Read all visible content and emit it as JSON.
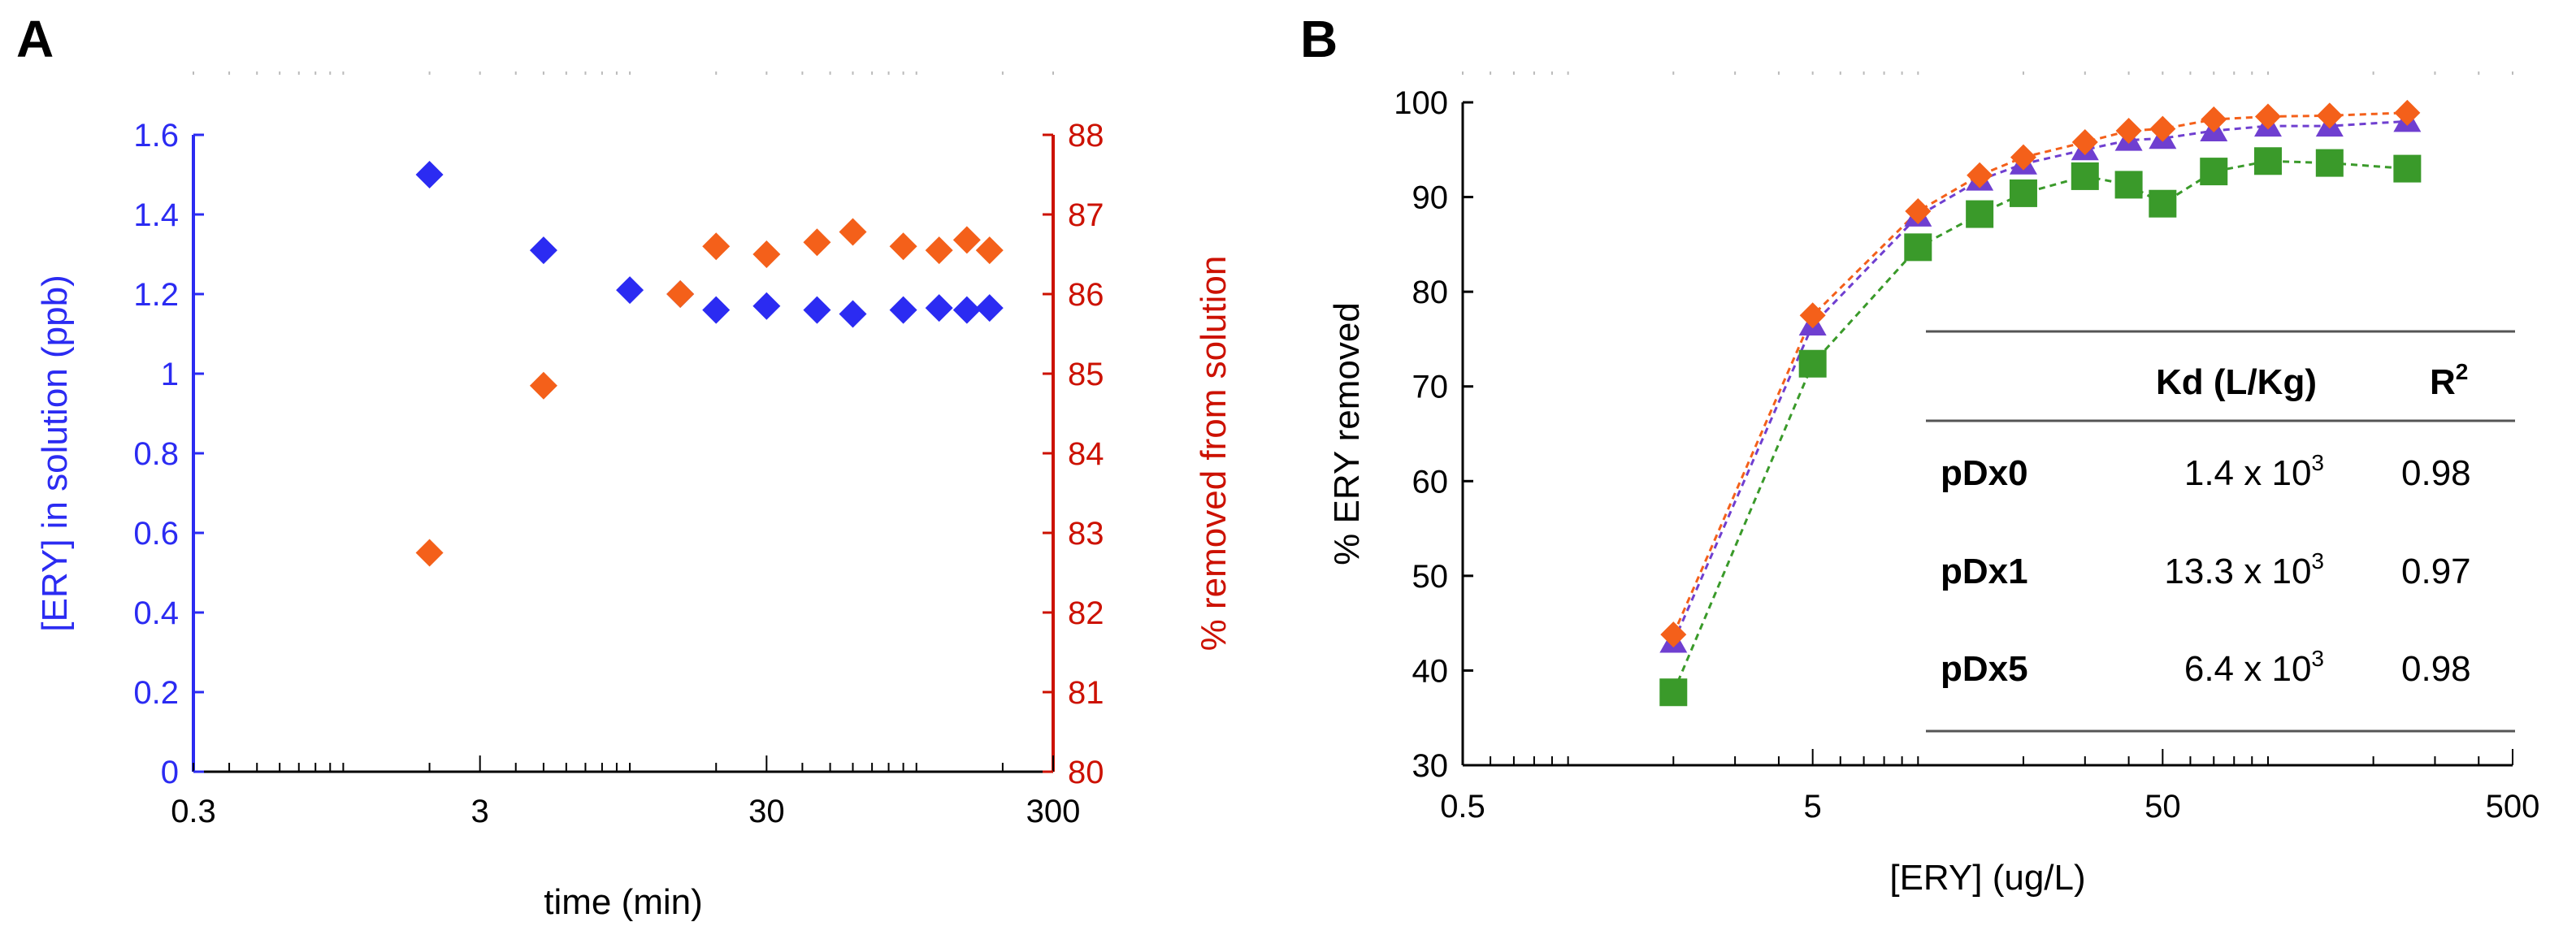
{
  "panels": {
    "a_letter": "A",
    "b_letter": "B"
  },
  "colors": {
    "blue": "#2b2bf2",
    "red": "#cc1100",
    "orange": "#f4601a",
    "purple": "#6f3fd0",
    "green": "#3a9a2a",
    "axis": "#000000"
  },
  "table": {
    "header_kd": "Kd (L/Kg)",
    "header_r2": "R",
    "header_r2_sup": "2",
    "rows": [
      {
        "label": "pDx0",
        "kd": "1.4 x 10",
        "kd_exp": "3",
        "r2": "0.98"
      },
      {
        "label": "pDx1",
        "kd": "13.3 x 10",
        "kd_exp": "3",
        "r2": "0.97"
      },
      {
        "label": "pDx5",
        "kd": "6.4 x 10",
        "kd_exp": "3",
        "r2": "0.98"
      }
    ]
  },
  "chart_data": [
    {
      "type": "scatter",
      "panel": "A",
      "xlabel": "time (min)",
      "ylabel": "[ERY] in solution (ppb)",
      "y2label": "% removed from solution",
      "xscale": "log",
      "xlim": [
        0.3,
        300
      ],
      "ylim": [
        0,
        1.6
      ],
      "y2lim": [
        80,
        88
      ],
      "xticks": [
        "0.3",
        "3",
        "30",
        "300"
      ],
      "yticks": [
        "0",
        "0.2",
        "0.4",
        "0.6",
        "0.8",
        "1",
        "1.2",
        "1.4",
        "1.6"
      ],
      "y2ticks": [
        "80",
        "81",
        "82",
        "83",
        "84",
        "85",
        "86",
        "87",
        "88"
      ],
      "series": [
        {
          "color": "#2b2bf2",
          "axis": "left",
          "x": [
            2,
            5,
            10,
            15,
            20,
            30,
            45,
            60,
            90,
            120,
            150,
            180
          ],
          "y": [
            1.5,
            1.31,
            1.21,
            1.2,
            1.16,
            1.17,
            1.16,
            1.15,
            1.16,
            1.165,
            1.16,
            1.165
          ]
        },
        {
          "color": "#f4601a",
          "axis": "right",
          "x": [
            2,
            5,
            15,
            20,
            30,
            45,
            60,
            90,
            120,
            150,
            180
          ],
          "y": [
            82.75,
            84.85,
            86.0,
            86.6,
            86.5,
            86.65,
            86.78,
            86.6,
            86.55,
            86.68,
            86.55
          ]
        }
      ]
    },
    {
      "type": "line",
      "panel": "B",
      "xlabel": "[ERY] (ug/L)",
      "ylabel": "% ERY removed",
      "xscale": "log",
      "xlim": [
        0.5,
        500
      ],
      "ylim": [
        30,
        100
      ],
      "xticks": [
        "0.5",
        "5",
        "50",
        "500"
      ],
      "yticks": [
        "30",
        "40",
        "50",
        "60",
        "70",
        "80",
        "90",
        "100"
      ],
      "x": [
        2,
        5,
        10,
        15,
        20,
        30,
        40,
        50,
        70,
        100,
        150,
        250
      ],
      "series": [
        {
          "color": "#6f3fd0",
          "marker": "triangle",
          "values": [
            43.0,
            76.5,
            88.0,
            91.8,
            93.5,
            95.0,
            96.0,
            96.2,
            97.0,
            97.5,
            97.5,
            98.0
          ]
        },
        {
          "color": "#f4601a",
          "marker": "diamond",
          "values": [
            43.8,
            77.5,
            88.5,
            92.3,
            94.2,
            95.8,
            97.0,
            97.2,
            98.2,
            98.5,
            98.6,
            98.9
          ]
        },
        {
          "color": "#3a9a2a",
          "marker": "square",
          "values": [
            37.7,
            72.4,
            84.7,
            88.2,
            90.4,
            92.2,
            91.3,
            89.3,
            92.7,
            93.8,
            93.6,
            93.0
          ]
        }
      ]
    }
  ]
}
